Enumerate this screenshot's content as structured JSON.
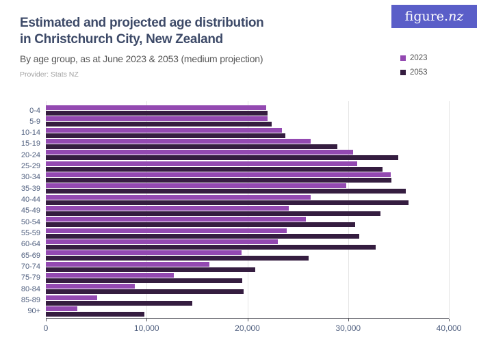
{
  "header": {
    "title_line1": "Estimated and projected age distribution",
    "title_line2": "in Christchurch City, New Zealand",
    "subtitle": "By age group, as at June 2023 & 2053 (medium projection)",
    "provider": "Provider: Stats NZ"
  },
  "logo": {
    "text_main": "figure.",
    "text_nz": "nz",
    "background_color": "#5a5ec8",
    "text_color": "#ffffff"
  },
  "legend": [
    {
      "label": "2023",
      "color": "#9349b1"
    },
    {
      "label": "2053",
      "color": "#351d40"
    }
  ],
  "chart_data": {
    "type": "bar",
    "orientation": "horizontal",
    "title": "Estimated and projected age distribution in Christchurch City, New Zealand",
    "subtitle": "By age group, as at June 2023 & 2053 (medium projection)",
    "source": "Provider: Stats NZ",
    "categories": [
      "0-4",
      "5-9",
      "10-14",
      "15-19",
      "20-24",
      "25-29",
      "30-34",
      "35-39",
      "40-44",
      "45-49",
      "50-54",
      "55-59",
      "60-64",
      "65-69",
      "70-74",
      "75-79",
      "80-84",
      "85-89",
      "90+"
    ],
    "series": [
      {
        "name": "2023",
        "color": "#9349b1",
        "values": [
          21900,
          22000,
          23400,
          26300,
          30500,
          30900,
          34200,
          29800,
          26300,
          24100,
          25800,
          23900,
          23000,
          19400,
          16200,
          12700,
          8800,
          5100,
          3100
        ]
      },
      {
        "name": "2053",
        "color": "#351d40",
        "values": [
          22000,
          22400,
          23800,
          28900,
          35000,
          33400,
          34300,
          35700,
          36000,
          33200,
          30700,
          31100,
          32700,
          26100,
          20800,
          19500,
          19600,
          14500,
          9800
        ]
      }
    ],
    "xlim": [
      0,
      40000
    ],
    "x_ticks": [
      0,
      10000,
      20000,
      30000,
      40000
    ],
    "x_tick_labels": [
      "0",
      "10,000",
      "20,000",
      "30,000",
      "40,000"
    ],
    "ylabel": "",
    "xlabel": "",
    "grid": "vertical",
    "legend_position": "top-right",
    "gridline_color": "#e4e4e4",
    "axis_line_color": "#54545c",
    "axis_label_color": "#4d5d7d"
  }
}
